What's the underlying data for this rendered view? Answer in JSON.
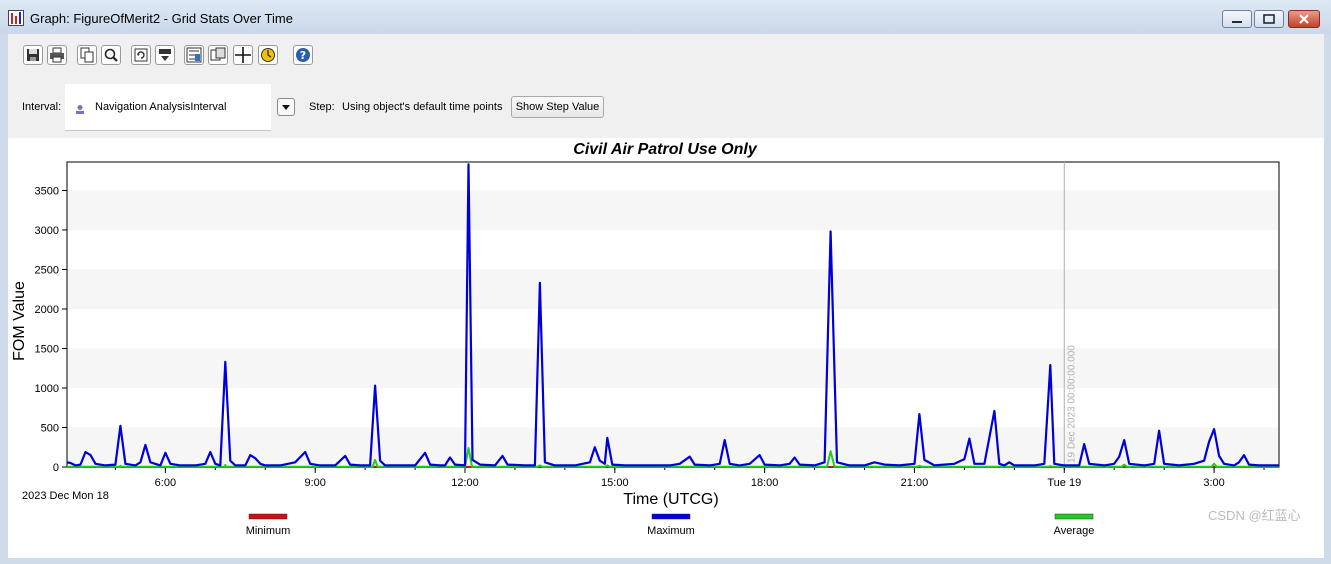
{
  "window": {
    "title": "Graph:  FigureOfMerit2 - Grid Stats Over Time",
    "controls": [
      "minimize",
      "maximize",
      "close"
    ]
  },
  "toolbar": {
    "icons": [
      "save-icon",
      "print-icon",
      "copy-icon",
      "zoom-icon",
      "refresh-icon",
      "export-icon",
      "properties-icon",
      "duplicate-icon",
      "crosshair-icon",
      "animation-icon",
      "help-icon"
    ]
  },
  "controls": {
    "interval_label": "Interval:",
    "interval_value": "Navigation AnalysisInterval",
    "step_label": "Step:",
    "step_text": "Using object's default time points",
    "step_button": "Show Step Value"
  },
  "colors": {
    "minimum": "#cc1111",
    "maximum": "#0000dd",
    "average": "#22cc22",
    "marker": "#b0b0b0",
    "band": "#f6f6f6"
  },
  "chart_data": {
    "type": "line",
    "title": "Civil Air Patrol Use Only",
    "xlabel": "Time (UTCG)",
    "ylabel": "FOM Value",
    "x_unit": "hours after 2023 Dec 18 00:00 UTCG",
    "xlim": [
      4.03,
      28.3
    ],
    "ylim": [
      0,
      3860
    ],
    "yticks": [
      0,
      500,
      1000,
      1500,
      2000,
      2500,
      3000,
      3500
    ],
    "xticks": [
      {
        "t": 6,
        "label": "6:00"
      },
      {
        "t": 9,
        "label": "9:00"
      },
      {
        "t": 12,
        "label": "12:00"
      },
      {
        "t": 15,
        "label": "15:00"
      },
      {
        "t": 18,
        "label": "18:00"
      },
      {
        "t": 21,
        "label": "21:00"
      },
      {
        "t": 24,
        "label": "Tue 19"
      },
      {
        "t": 27,
        "label": "3:00"
      }
    ],
    "start_date_label": "2023 Dec Mon 18",
    "marker": {
      "t": 24,
      "label": "19 Dec 2023 00:00:00.000"
    },
    "grid": "horizontal bands",
    "legend_position": "bottom",
    "series": [
      {
        "name": "Minimum",
        "points": [
          [
            4.03,
            0
          ],
          [
            28.3,
            0
          ]
        ]
      },
      {
        "name": "Maximum",
        "points": [
          [
            4.03,
            60
          ],
          [
            4.1,
            50
          ],
          [
            4.2,
            20
          ],
          [
            4.3,
            30
          ],
          [
            4.4,
            190
          ],
          [
            4.5,
            150
          ],
          [
            4.6,
            40
          ],
          [
            4.8,
            20
          ],
          [
            5.0,
            30
          ],
          [
            5.1,
            520
          ],
          [
            5.2,
            40
          ],
          [
            5.4,
            20
          ],
          [
            5.5,
            60
          ],
          [
            5.6,
            280
          ],
          [
            5.7,
            60
          ],
          [
            5.9,
            20
          ],
          [
            6.0,
            180
          ],
          [
            6.1,
            40
          ],
          [
            6.3,
            20
          ],
          [
            6.6,
            20
          ],
          [
            6.8,
            40
          ],
          [
            6.9,
            190
          ],
          [
            7.0,
            40
          ],
          [
            7.1,
            20
          ],
          [
            7.2,
            1330
          ],
          [
            7.3,
            80
          ],
          [
            7.4,
            20
          ],
          [
            7.6,
            20
          ],
          [
            7.7,
            150
          ],
          [
            7.8,
            110
          ],
          [
            7.9,
            40
          ],
          [
            8.0,
            20
          ],
          [
            8.3,
            20
          ],
          [
            8.6,
            60
          ],
          [
            8.8,
            190
          ],
          [
            8.9,
            40
          ],
          [
            9.1,
            20
          ],
          [
            9.4,
            20
          ],
          [
            9.6,
            140
          ],
          [
            9.7,
            30
          ],
          [
            9.9,
            20
          ],
          [
            10.1,
            20
          ],
          [
            10.2,
            1030
          ],
          [
            10.3,
            80
          ],
          [
            10.4,
            20
          ],
          [
            10.7,
            20
          ],
          [
            11.0,
            20
          ],
          [
            11.2,
            180
          ],
          [
            11.3,
            30
          ],
          [
            11.5,
            20
          ],
          [
            11.6,
            20
          ],
          [
            11.7,
            120
          ],
          [
            11.8,
            30
          ],
          [
            12.0,
            20
          ],
          [
            12.07,
            3830
          ],
          [
            12.15,
            90
          ],
          [
            12.3,
            30
          ],
          [
            12.6,
            20
          ],
          [
            12.75,
            140
          ],
          [
            12.85,
            30
          ],
          [
            13.2,
            20
          ],
          [
            13.4,
            20
          ],
          [
            13.5,
            2330
          ],
          [
            13.6,
            60
          ],
          [
            13.8,
            20
          ],
          [
            14.2,
            20
          ],
          [
            14.5,
            60
          ],
          [
            14.6,
            250
          ],
          [
            14.7,
            80
          ],
          [
            14.8,
            40
          ],
          [
            14.85,
            370
          ],
          [
            14.95,
            30
          ],
          [
            15.2,
            20
          ],
          [
            15.5,
            20
          ],
          [
            15.8,
            20
          ],
          [
            16.1,
            20
          ],
          [
            16.3,
            40
          ],
          [
            16.5,
            130
          ],
          [
            16.6,
            30
          ],
          [
            16.9,
            20
          ],
          [
            17.1,
            40
          ],
          [
            17.2,
            340
          ],
          [
            17.3,
            40
          ],
          [
            17.5,
            20
          ],
          [
            17.7,
            40
          ],
          [
            17.9,
            150
          ],
          [
            18.0,
            30
          ],
          [
            18.3,
            20
          ],
          [
            18.5,
            40
          ],
          [
            18.6,
            120
          ],
          [
            18.7,
            30
          ],
          [
            19.0,
            20
          ],
          [
            19.2,
            60
          ],
          [
            19.32,
            2980
          ],
          [
            19.45,
            60
          ],
          [
            19.7,
            20
          ],
          [
            20.0,
            20
          ],
          [
            20.2,
            60
          ],
          [
            20.4,
            30
          ],
          [
            20.7,
            20
          ],
          [
            21.0,
            40
          ],
          [
            21.1,
            670
          ],
          [
            21.2,
            90
          ],
          [
            21.4,
            20
          ],
          [
            21.8,
            40
          ],
          [
            22.0,
            100
          ],
          [
            22.1,
            360
          ],
          [
            22.2,
            40
          ],
          [
            22.4,
            40
          ],
          [
            22.6,
            710
          ],
          [
            22.7,
            40
          ],
          [
            22.8,
            20
          ],
          [
            22.9,
            60
          ],
          [
            23.0,
            20
          ],
          [
            23.4,
            20
          ],
          [
            23.6,
            40
          ],
          [
            23.72,
            1290
          ],
          [
            23.8,
            40
          ],
          [
            24.0,
            20
          ],
          [
            24.3,
            20
          ],
          [
            24.4,
            290
          ],
          [
            24.5,
            40
          ],
          [
            24.8,
            20
          ],
          [
            25.0,
            40
          ],
          [
            25.1,
            130
          ],
          [
            25.2,
            340
          ],
          [
            25.3,
            40
          ],
          [
            25.6,
            20
          ],
          [
            25.8,
            40
          ],
          [
            25.9,
            460
          ],
          [
            26.0,
            40
          ],
          [
            26.3,
            20
          ],
          [
            26.6,
            40
          ],
          [
            26.8,
            80
          ],
          [
            26.9,
            320
          ],
          [
            27.0,
            480
          ],
          [
            27.1,
            140
          ],
          [
            27.2,
            40
          ],
          [
            27.4,
            20
          ],
          [
            27.5,
            60
          ],
          [
            27.6,
            150
          ],
          [
            27.7,
            30
          ],
          [
            27.9,
            20
          ],
          [
            28.3,
            20
          ]
        ]
      },
      {
        "name": "Average",
        "points": [
          [
            4.03,
            4
          ],
          [
            5.09,
            4
          ],
          [
            5.1,
            15
          ],
          [
            5.11,
            4
          ],
          [
            7.19,
            4
          ],
          [
            7.2,
            25
          ],
          [
            7.21,
            4
          ],
          [
            10.15,
            4
          ],
          [
            10.2,
            90
          ],
          [
            10.25,
            4
          ],
          [
            12.0,
            4
          ],
          [
            12.07,
            240
          ],
          [
            12.14,
            4
          ],
          [
            13.45,
            4
          ],
          [
            13.5,
            20
          ],
          [
            13.55,
            4
          ],
          [
            14.8,
            4
          ],
          [
            14.85,
            20
          ],
          [
            14.9,
            4
          ],
          [
            19.25,
            4
          ],
          [
            19.32,
            200
          ],
          [
            19.4,
            4
          ],
          [
            21.05,
            4
          ],
          [
            21.1,
            15
          ],
          [
            21.15,
            4
          ],
          [
            23.7,
            4
          ],
          [
            23.72,
            10
          ],
          [
            23.76,
            4
          ],
          [
            25.15,
            4
          ],
          [
            25.2,
            30
          ],
          [
            25.25,
            4
          ],
          [
            26.95,
            4
          ],
          [
            27.0,
            40
          ],
          [
            27.05,
            4
          ],
          [
            28.3,
            4
          ]
        ]
      }
    ]
  },
  "watermark": "CSDN @红蓝心"
}
